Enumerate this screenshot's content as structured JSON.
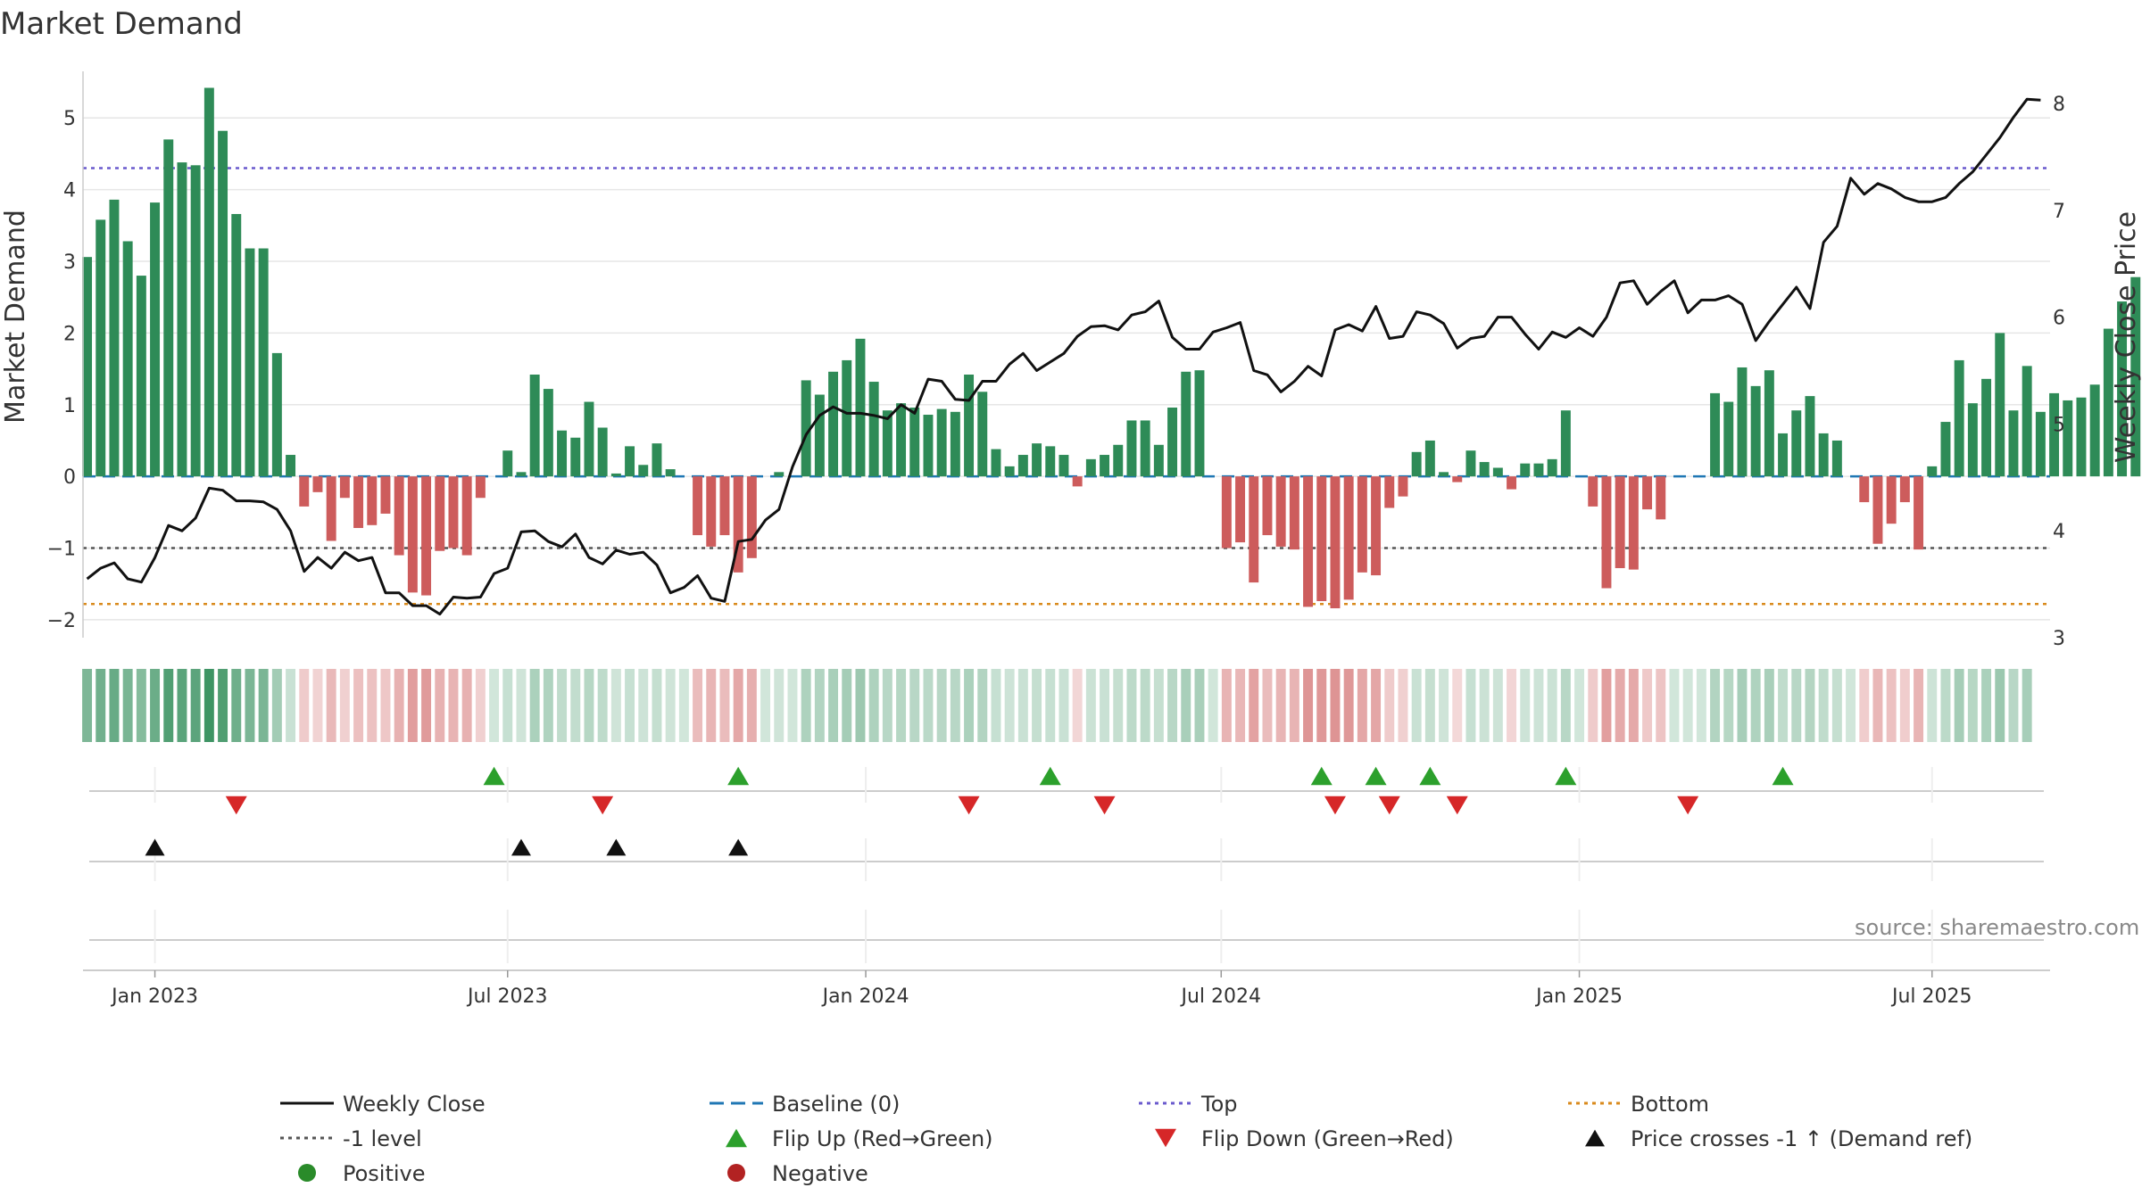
{
  "chart_data": {
    "type": "bar",
    "title": "Market Demand",
    "ylabel_left": "Market Demand",
    "ylabel_right": "Weekly Close Price",
    "source": "source: sharemaestro.com",
    "yticks_left": [
      "5",
      "4",
      "3",
      "2",
      "1",
      "0",
      "−1",
      "−2"
    ],
    "yticks_left_values": [
      5,
      4,
      3,
      2,
      1,
      0,
      -1,
      -2
    ],
    "yticks_right": [
      "8",
      "7",
      "6",
      "5",
      "4",
      "3"
    ],
    "yticks_right_values": [
      8,
      7,
      6,
      5,
      4,
      3
    ],
    "ylim_left": [
      -2.25,
      5.65
    ],
    "ylim_right": [
      3.0,
      8.3
    ],
    "xlim_weeks": [
      -4.3,
      140.7
    ],
    "xticks": [
      {
        "label": "Jan 2023",
        "week": 1
      },
      {
        "label": "Jul 2023",
        "week": 27
      },
      {
        "label": "Jan 2024",
        "week": 53.4
      },
      {
        "label": "Jul 2024",
        "week": 79.6
      },
      {
        "label": "Jan 2025",
        "week": 106
      },
      {
        "label": "Jul 2025",
        "week": 132
      }
    ],
    "reference_lines": {
      "top": 4.3,
      "minus_one": -1.0,
      "bottom": -1.78,
      "baseline": 0
    },
    "demand_start_week": -4,
    "demand": [
      3.06,
      3.58,
      3.86,
      3.28,
      2.8,
      3.82,
      4.7,
      4.38,
      4.34,
      5.42,
      4.82,
      3.66,
      3.18,
      3.18,
      1.72,
      0.3,
      -0.42,
      -0.22,
      -0.9,
      -0.3,
      -0.72,
      -0.68,
      -0.52,
      -1.1,
      -1.62,
      -1.66,
      -1.04,
      -1.0,
      -1.1,
      -0.3,
      0.0,
      0.36,
      0.06,
      1.42,
      1.22,
      0.64,
      0.54,
      1.04,
      0.68,
      0.04,
      0.42,
      0.16,
      0.46,
      0.1,
      0.0,
      -0.82,
      -0.98,
      -0.82,
      -1.34,
      -1.14,
      0.0,
      0.06,
      0.0,
      1.34,
      1.14,
      1.46,
      1.62,
      1.92,
      1.32,
      0.92,
      1.02,
      0.96,
      0.86,
      0.94,
      0.9,
      1.42,
      1.18,
      0.38,
      0.14,
      0.3,
      0.46,
      0.42,
      0.3,
      -0.14,
      0.24,
      0.3,
      0.44,
      0.78,
      0.78,
      0.44,
      0.96,
      1.46,
      1.48,
      0.0,
      -1.0,
      -0.92,
      -1.48,
      -0.82,
      -0.98,
      -1.02,
      -1.82,
      -1.74,
      -1.84,
      -1.72,
      -1.34,
      -1.38,
      -0.44,
      -0.28,
      0.34,
      0.5,
      0.06,
      -0.08,
      0.36,
      0.2,
      0.12,
      -0.18,
      0.18,
      0.18,
      0.24,
      0.92,
      0.0,
      -0.42,
      -1.56,
      -1.28,
      -1.3,
      -0.46,
      -0.6,
      0.0,
      0.0,
      0.0,
      1.16,
      1.04,
      1.52,
      1.26,
      1.48,
      0.6,
      0.92,
      1.12,
      0.6,
      0.5,
      0.0,
      -0.36,
      -0.94,
      -0.66,
      -0.36,
      -1.02,
      0.14,
      0.76,
      1.62,
      1.02,
      1.36,
      2.0,
      0.92,
      1.54,
      0.9,
      1.16,
      1.06,
      1.1,
      1.28,
      2.06,
      2.44,
      2.78
    ],
    "price_start_week": -4,
    "weekly_close": [
      3.55,
      3.65,
      3.7,
      3.55,
      3.52,
      3.75,
      4.05,
      4.0,
      4.12,
      4.4,
      4.38,
      4.28,
      4.28,
      4.27,
      4.2,
      4.0,
      3.62,
      3.75,
      3.65,
      3.8,
      3.72,
      3.75,
      3.42,
      3.42,
      3.3,
      3.3,
      3.22,
      3.38,
      3.37,
      3.38,
      3.6,
      3.65,
      3.99,
      4.0,
      3.9,
      3.85,
      3.97,
      3.75,
      3.69,
      3.82,
      3.78,
      3.8,
      3.68,
      3.42,
      3.47,
      3.58,
      3.37,
      3.34,
      3.9,
      3.92,
      4.1,
      4.2,
      4.6,
      4.9,
      5.08,
      5.16,
      5.1,
      5.1,
      5.08,
      5.05,
      5.18,
      5.1,
      5.42,
      5.4,
      5.23,
      5.22,
      5.4,
      5.4,
      5.56,
      5.66,
      5.5,
      5.58,
      5.66,
      5.82,
      5.91,
      5.92,
      5.88,
      6.02,
      6.05,
      6.15,
      5.81,
      5.7,
      5.7,
      5.86,
      5.9,
      5.95,
      5.5,
      5.46,
      5.3,
      5.4,
      5.54,
      5.45,
      5.88,
      5.93,
      5.87,
      6.1,
      5.8,
      5.82,
      6.05,
      6.02,
      5.94,
      5.71,
      5.8,
      5.82,
      6.0,
      6.0,
      5.84,
      5.7,
      5.86,
      5.81,
      5.9,
      5.82,
      6.0,
      6.32,
      6.34,
      6.12,
      6.24,
      6.34,
      6.04,
      6.16,
      6.16,
      6.2,
      6.12,
      5.78,
      5.96,
      6.12,
      6.28,
      6.08,
      6.7,
      6.85,
      7.3,
      7.15,
      7.25,
      7.2,
      7.12,
      7.08,
      7.08,
      7.12,
      7.25,
      7.36,
      7.52,
      7.68,
      7.87,
      8.04,
      8.03
    ],
    "heat_strip": {
      "start_week": -4,
      "cells": 144
    },
    "flip_up_weeks": [
      26,
      44,
      67,
      87,
      91,
      95,
      105,
      121
    ],
    "flip_down_weeks": [
      7,
      34,
      61,
      71,
      88,
      92,
      97,
      114
    ],
    "price_cross_weeks": [
      1,
      28,
      35,
      44
    ],
    "legend": [
      {
        "label": "Weekly Close",
        "symbol": "line-black"
      },
      {
        "label": "Baseline (0)",
        "symbol": "dash-blue"
      },
      {
        "label": "Top",
        "symbol": "dot-purple"
      },
      {
        "label": "Bottom",
        "symbol": "dot-orange"
      },
      {
        "label": "-1 level",
        "symbol": "dot-gray"
      },
      {
        "label": "Flip Up (Red→Green)",
        "symbol": "tri-up-green"
      },
      {
        "label": "Flip Down (Green→Red)",
        "symbol": "tri-down-red"
      },
      {
        "label": "Price crosses -1 ↑ (Demand ref)",
        "symbol": "tri-up-black"
      },
      {
        "label": "Positive",
        "symbol": "dot-green"
      },
      {
        "label": "Negative",
        "symbol": "dot-red"
      }
    ]
  },
  "colors": {
    "positive_bar": "#2e8b57",
    "negative_bar": "#cd5c5c",
    "price_line": "#111111",
    "baseline": "#1f77b4",
    "top_line": "#6a5acd",
    "bottom_line": "#d98a1c",
    "minus_one_line": "#555555",
    "flip_up": "#2ca02c",
    "flip_down": "#d62728",
    "cross_up": "#111111",
    "positive_dot": "#2a8b2a",
    "negative_dot": "#b22222",
    "grid": "#e6e6e6",
    "axis": "#cccccc"
  }
}
